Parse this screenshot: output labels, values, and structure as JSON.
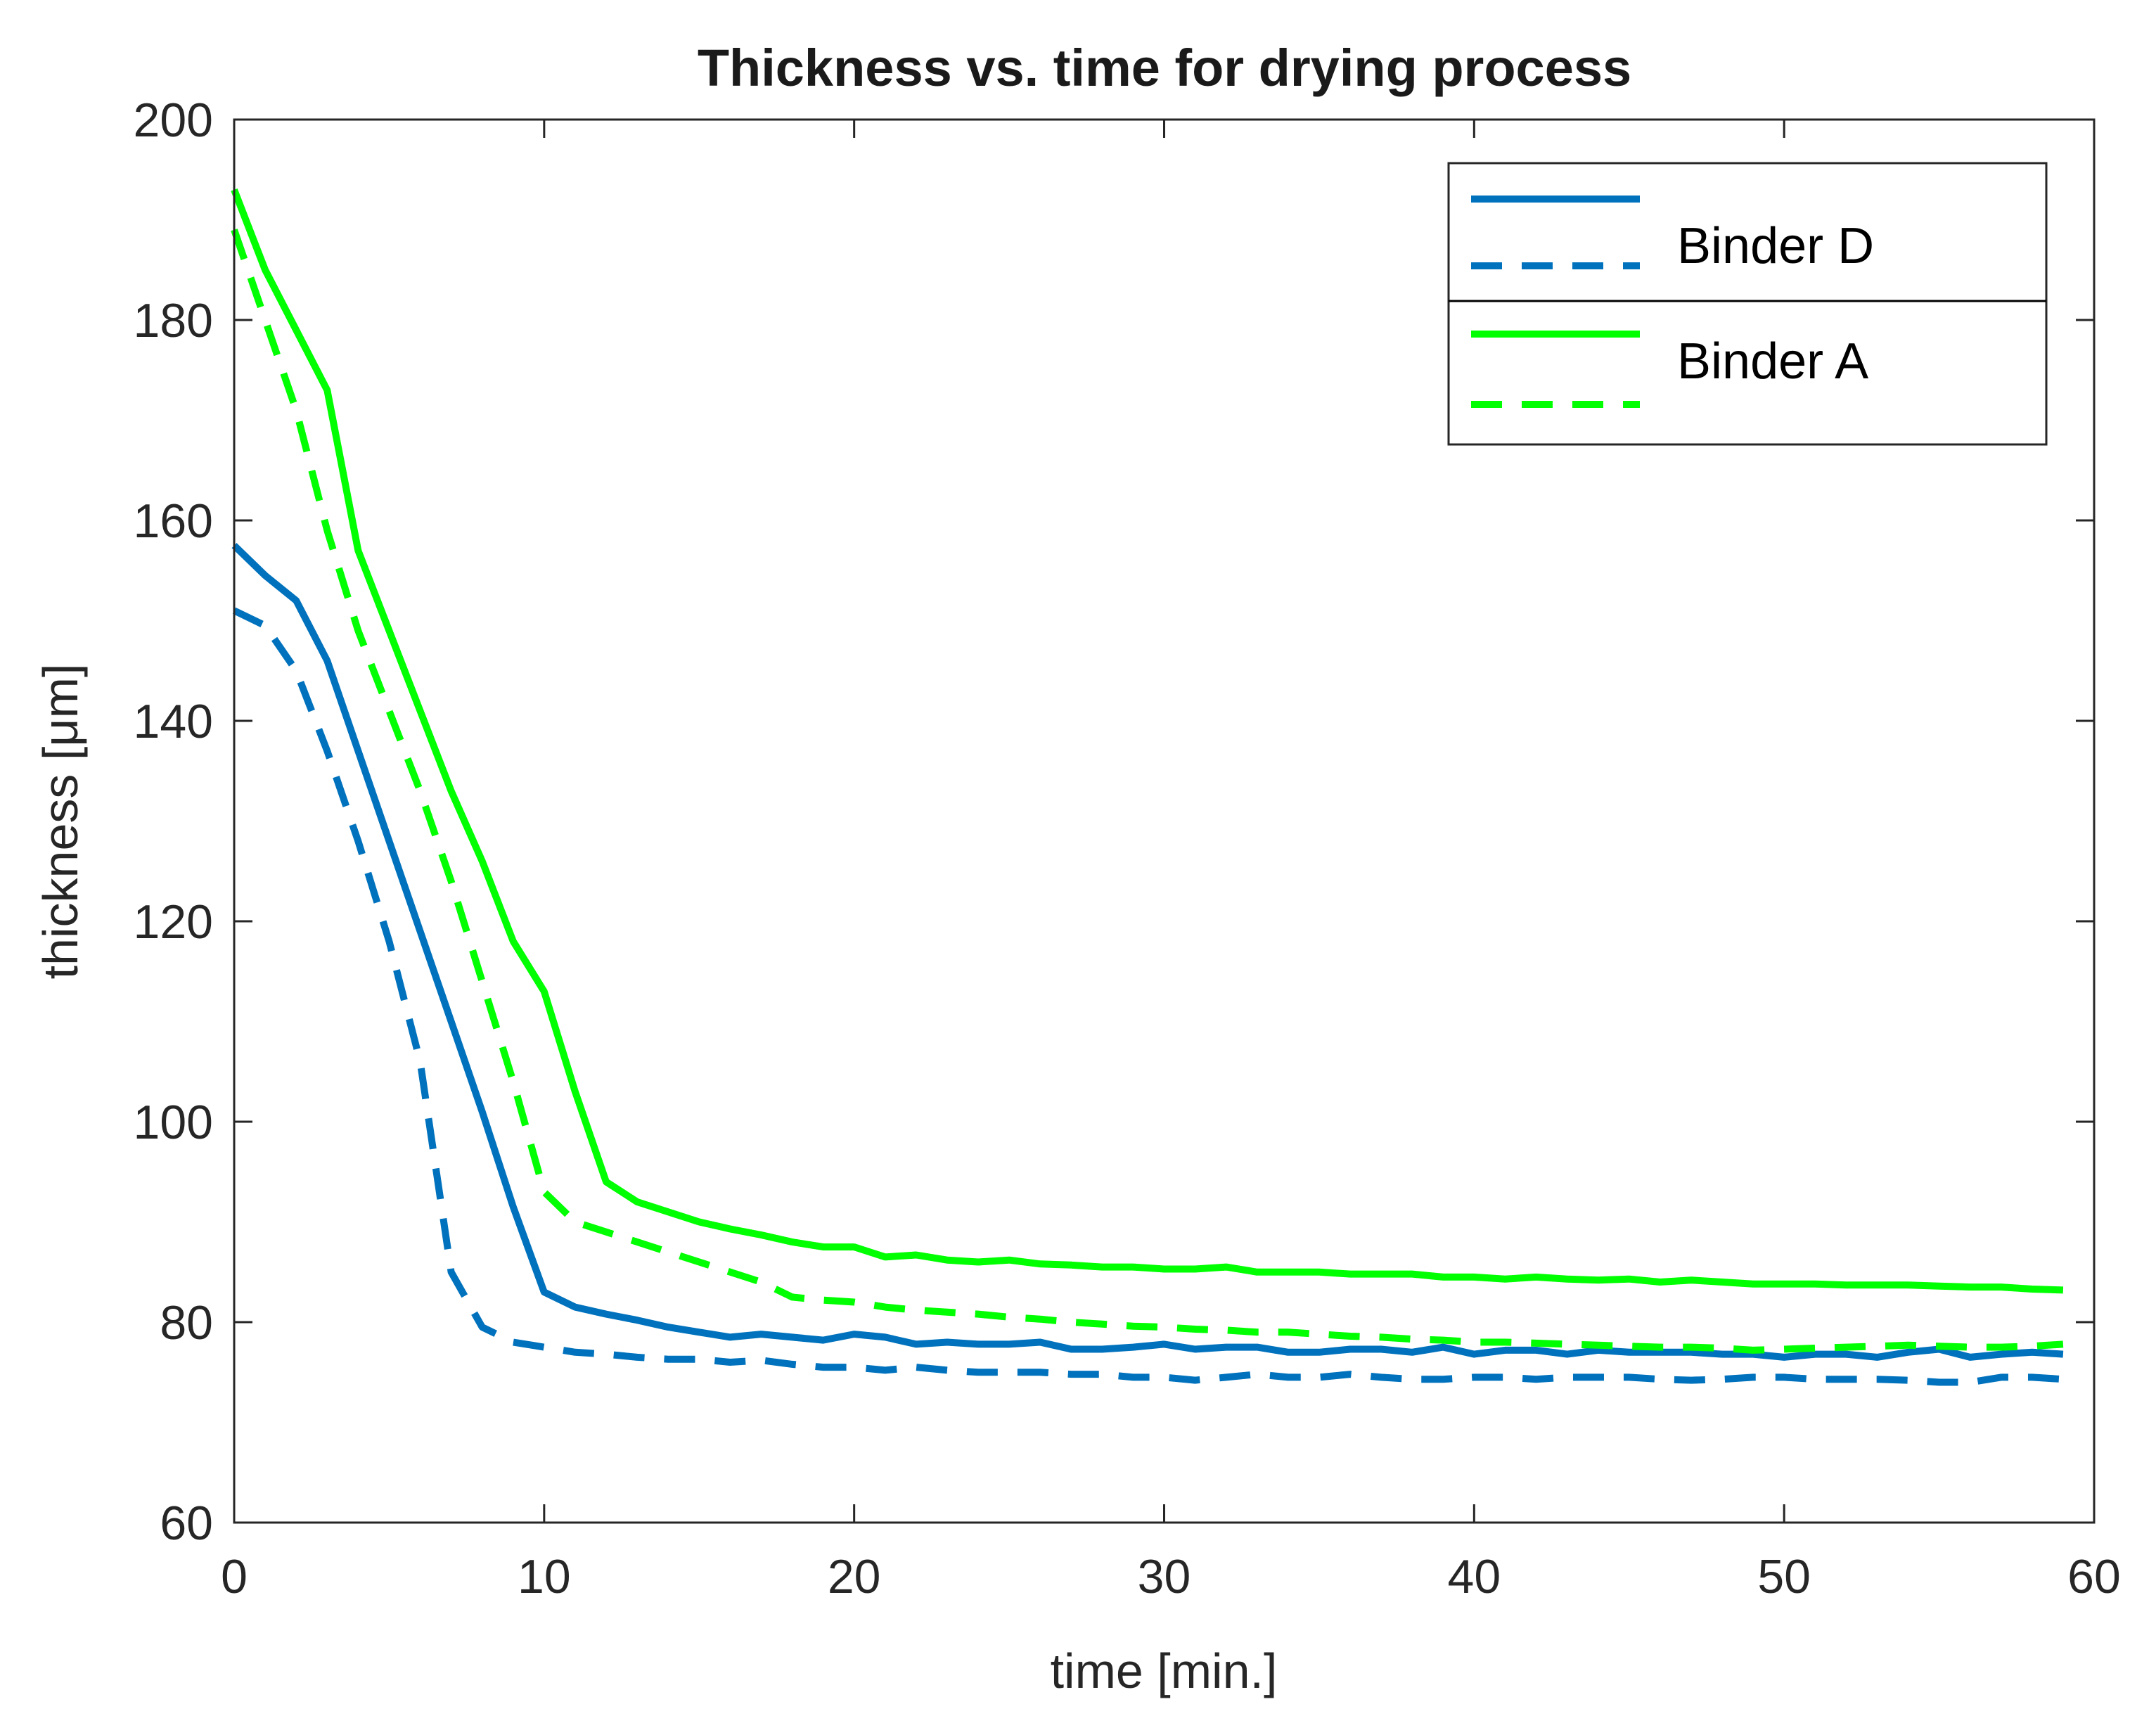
{
  "chart_data": {
    "type": "line",
    "title": "Thickness vs. time for drying process",
    "xlabel": "time [min.]",
    "ylabel": "thickness [μm]",
    "xlim": [
      0,
      60
    ],
    "ylim": [
      60,
      200
    ],
    "xticks": [
      0,
      10,
      20,
      30,
      40,
      50,
      60
    ],
    "yticks": [
      60,
      80,
      100,
      120,
      140,
      160,
      180,
      200
    ],
    "grid": false,
    "legend_position": "top-right",
    "legend_groups": [
      {
        "label": "Binder D",
        "color": "#0072BD"
      },
      {
        "label": "Binder A",
        "color": "#00FF00"
      }
    ],
    "series": [
      {
        "name": "Binder D (solid)",
        "group": "Binder D",
        "color": "#0072BD",
        "style": "solid",
        "x": [
          0,
          1,
          2,
          3,
          4,
          5,
          6,
          7,
          8,
          9,
          10,
          11,
          12,
          13,
          14,
          15,
          16,
          17,
          18,
          19,
          20,
          21,
          22,
          23,
          24,
          25,
          26,
          27,
          28,
          29,
          30,
          31,
          32,
          33,
          34,
          35,
          36,
          37,
          38,
          39,
          40,
          41,
          42,
          43,
          44,
          45,
          46,
          47,
          48,
          49,
          50,
          51,
          52,
          53,
          54,
          55,
          56,
          57,
          58,
          59
        ],
        "y": [
          157.5,
          154.5,
          152,
          146,
          137,
          128,
          119,
          110,
          101,
          91.5,
          83,
          81.5,
          80.8,
          80.2,
          79.5,
          79,
          78.5,
          78.8,
          78.5,
          78.2,
          78.8,
          78.5,
          77.8,
          78,
          77.8,
          77.8,
          78,
          77.3,
          77.3,
          77.5,
          77.8,
          77.3,
          77.5,
          77.5,
          77,
          77,
          77.3,
          77.3,
          77,
          77.5,
          76.8,
          77.2,
          77.2,
          76.8,
          77.2,
          77,
          77,
          77,
          76.8,
          76.8,
          76.5,
          76.8,
          76.8,
          76.5,
          77,
          77.3,
          76.5,
          76.8,
          77,
          76.8
        ]
      },
      {
        "name": "Binder D (dashed)",
        "group": "Binder D",
        "color": "#0072BD",
        "style": "dashed",
        "x": [
          0,
          1,
          2,
          3,
          4,
          5,
          6,
          7,
          8,
          9,
          10,
          11,
          12,
          13,
          14,
          15,
          16,
          17,
          18,
          19,
          20,
          21,
          22,
          23,
          24,
          25,
          26,
          27,
          28,
          29,
          30,
          31,
          32,
          33,
          34,
          35,
          36,
          37,
          38,
          39,
          40,
          41,
          42,
          43,
          44,
          45,
          46,
          47,
          48,
          49,
          50,
          51,
          52,
          53,
          54,
          55,
          56,
          57,
          58,
          59
        ],
        "y": [
          151,
          149.5,
          145,
          137,
          128,
          118,
          106,
          85,
          79.5,
          78,
          77.5,
          77,
          76.8,
          76.5,
          76.3,
          76.3,
          76,
          76.2,
          75.8,
          75.5,
          75.5,
          75.2,
          75.5,
          75.2,
          75,
          75,
          75,
          74.8,
          74.8,
          74.5,
          74.5,
          74.2,
          74.5,
          74.8,
          74.5,
          74.5,
          74.8,
          74.5,
          74.3,
          74.3,
          74.5,
          74.5,
          74.3,
          74.5,
          74.5,
          74.5,
          74.3,
          74.2,
          74.3,
          74.5,
          74.5,
          74.3,
          74.3,
          74.3,
          74.2,
          74,
          74,
          74.5,
          74.5,
          74.3
        ]
      },
      {
        "name": "Binder A (solid)",
        "group": "Binder A",
        "color": "#00FF00",
        "style": "solid",
        "x": [
          0,
          1,
          2,
          3,
          4,
          5,
          6,
          7,
          8,
          9,
          10,
          11,
          12,
          13,
          14,
          15,
          16,
          17,
          18,
          19,
          20,
          21,
          22,
          23,
          24,
          25,
          26,
          27,
          28,
          29,
          30,
          31,
          32,
          33,
          34,
          35,
          36,
          37,
          38,
          39,
          40,
          41,
          42,
          43,
          44,
          45,
          46,
          47,
          48,
          49,
          50,
          51,
          52,
          53,
          54,
          55,
          56,
          57,
          58,
          59
        ],
        "y": [
          193,
          185,
          179,
          173,
          157,
          149,
          141,
          133,
          126,
          118,
          113,
          103,
          94,
          92,
          91,
          90,
          89.3,
          88.7,
          88,
          87.5,
          87.5,
          86.5,
          86.7,
          86.2,
          86,
          86.2,
          85.8,
          85.7,
          85.5,
          85.5,
          85.3,
          85.3,
          85.5,
          85,
          85,
          85,
          84.8,
          84.8,
          84.8,
          84.5,
          84.5,
          84.3,
          84.5,
          84.3,
          84.2,
          84.3,
          84,
          84.2,
          84,
          83.8,
          83.8,
          83.8,
          83.7,
          83.7,
          83.7,
          83.6,
          83.5,
          83.5,
          83.3,
          83.2
        ]
      },
      {
        "name": "Binder A (dashed)",
        "group": "Binder A",
        "color": "#00FF00",
        "style": "dashed",
        "x": [
          0,
          1,
          2,
          3,
          4,
          5,
          6,
          7,
          8,
          9,
          10,
          11,
          12,
          13,
          14,
          15,
          16,
          17,
          18,
          19,
          20,
          21,
          22,
          23,
          24,
          25,
          26,
          27,
          28,
          29,
          30,
          31,
          32,
          33,
          34,
          35,
          36,
          37,
          38,
          39,
          40,
          41,
          42,
          43,
          44,
          45,
          46,
          47,
          48,
          49,
          50,
          51,
          52,
          53,
          54,
          55,
          56,
          57,
          58,
          59
        ],
        "y": [
          189,
          180,
          171,
          159,
          149,
          141,
          133,
          124,
          114,
          104,
          93,
          90,
          89,
          88,
          87,
          86,
          85,
          84,
          82.5,
          82.2,
          82,
          81.5,
          81.2,
          81,
          80.8,
          80.5,
          80.3,
          80,
          79.8,
          79.6,
          79.5,
          79.3,
          79.2,
          79,
          79,
          78.8,
          78.6,
          78.5,
          78.3,
          78.2,
          78,
          78,
          77.9,
          77.8,
          77.7,
          77.6,
          77.5,
          77.5,
          77.4,
          77.2,
          77.3,
          77.4,
          77.5,
          77.6,
          77.7,
          77.6,
          77.5,
          77.5,
          77.6,
          77.8
        ]
      }
    ]
  }
}
